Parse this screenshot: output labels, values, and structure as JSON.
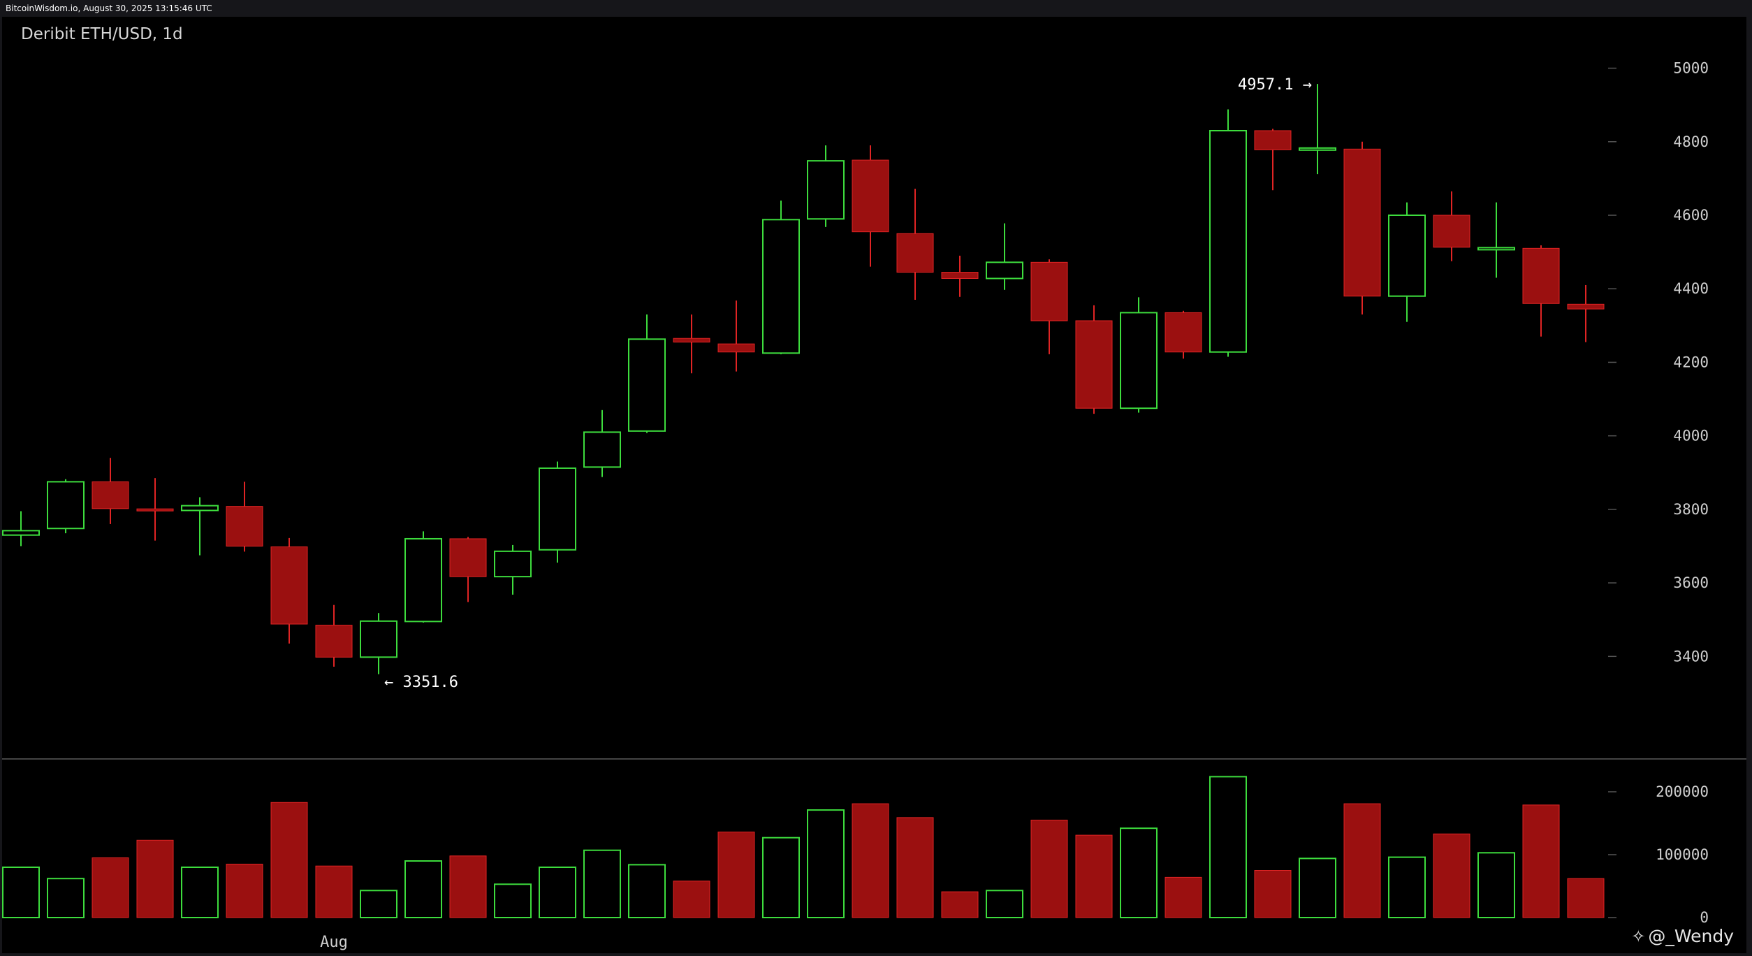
{
  "timestamp": "BitcoinWisdom.io, August 30, 2025 13:15:46 UTC",
  "title": "Deribit ETH/USD, 1d",
  "watermark": "@_Wendy",
  "colors": {
    "up": "#3ddc3d",
    "down": "#9b1010",
    "down_wick": "#e02424",
    "axis_text": "#cfcfcf",
    "background": "#000000"
  },
  "chart_data": [
    {
      "type": "candlestick",
      "title": "Deribit ETH/USD, 1d",
      "ylim": [
        3220,
        5060
      ],
      "y_ticks": [
        3400,
        3600,
        3800,
        4000,
        4200,
        4400,
        4600,
        4800,
        5000
      ],
      "x_tick_labels": [
        {
          "index": 7,
          "label": "Aug"
        }
      ],
      "annotations": [
        {
          "label": "4957.1 →",
          "index": 29,
          "value": 4957.1
        },
        {
          "label": "← 3351.6",
          "index": 8,
          "value": 3351.6
        }
      ],
      "candles": [
        {
          "o": 3730,
          "h": 3795,
          "l": 3700,
          "c": 3742
        },
        {
          "o": 3748,
          "h": 3882,
          "l": 3735,
          "c": 3875
        },
        {
          "o": 3875,
          "h": 3940,
          "l": 3760,
          "c": 3802
        },
        {
          "o": 3800,
          "h": 3885,
          "l": 3715,
          "c": 3797
        },
        {
          "o": 3797,
          "h": 3833,
          "l": 3675,
          "c": 3810
        },
        {
          "o": 3808,
          "h": 3875,
          "l": 3685,
          "c": 3700
        },
        {
          "o": 3698,
          "h": 3722,
          "l": 3435,
          "c": 3488
        },
        {
          "o": 3485,
          "h": 3540,
          "l": 3372,
          "c": 3398
        },
        {
          "o": 3398,
          "h": 3518,
          "l": 3351.6,
          "c": 3496
        },
        {
          "o": 3495,
          "h": 3740,
          "l": 3492,
          "c": 3720
        },
        {
          "o": 3720,
          "h": 3725,
          "l": 3548,
          "c": 3617
        },
        {
          "o": 3617,
          "h": 3703,
          "l": 3568,
          "c": 3686
        },
        {
          "o": 3690,
          "h": 3930,
          "l": 3655,
          "c": 3912
        },
        {
          "o": 3915,
          "h": 4070,
          "l": 3888,
          "c": 4010
        },
        {
          "o": 4013,
          "h": 4330,
          "l": 4008,
          "c": 4263
        },
        {
          "o": 4265,
          "h": 4330,
          "l": 4170,
          "c": 4255
        },
        {
          "o": 4250,
          "h": 4368,
          "l": 4175,
          "c": 4228
        },
        {
          "o": 4225,
          "h": 4640,
          "l": 4222,
          "c": 4588
        },
        {
          "o": 4590,
          "h": 4790,
          "l": 4568,
          "c": 4748
        },
        {
          "o": 4750,
          "h": 4790,
          "l": 4460,
          "c": 4555
        },
        {
          "o": 4550,
          "h": 4672,
          "l": 4370,
          "c": 4445
        },
        {
          "o": 4445,
          "h": 4490,
          "l": 4378,
          "c": 4428
        },
        {
          "o": 4428,
          "h": 4578,
          "l": 4397,
          "c": 4472
        },
        {
          "o": 4472,
          "h": 4480,
          "l": 4222,
          "c": 4313
        },
        {
          "o": 4313,
          "h": 4355,
          "l": 4060,
          "c": 4075
        },
        {
          "o": 4075,
          "h": 4377,
          "l": 4063,
          "c": 4335
        },
        {
          "o": 4335,
          "h": 4340,
          "l": 4210,
          "c": 4228
        },
        {
          "o": 4228,
          "h": 4888,
          "l": 4215,
          "c": 4830
        },
        {
          "o": 4830,
          "h": 4835,
          "l": 4668,
          "c": 4778
        },
        {
          "o": 4778,
          "h": 4957.1,
          "l": 4712,
          "c": 4782
        },
        {
          "o": 4780,
          "h": 4800,
          "l": 4330,
          "c": 4380
        },
        {
          "o": 4380,
          "h": 4635,
          "l": 4310,
          "c": 4600
        },
        {
          "o": 4600,
          "h": 4665,
          "l": 4475,
          "c": 4513
        },
        {
          "o": 4508,
          "h": 4635,
          "l": 4430,
          "c": 4510
        },
        {
          "o": 4510,
          "h": 4518,
          "l": 4270,
          "c": 4360
        },
        {
          "o": 4358,
          "h": 4410,
          "l": 4255,
          "c": 4345
        }
      ]
    },
    {
      "type": "bar",
      "title": "",
      "ylim": [
        0,
        230000
      ],
      "y_ticks": [
        0,
        100000,
        200000
      ],
      "values": [
        80000,
        62000,
        95000,
        123000,
        80000,
        85000,
        183000,
        82000,
        43000,
        90000,
        98000,
        53000,
        80000,
        107000,
        84000,
        58000,
        136000,
        127000,
        171000,
        181000,
        159000,
        41000,
        43000,
        155000,
        131000,
        142000,
        64000,
        224000,
        75000,
        94000,
        181000,
        96000,
        133000,
        103000,
        179000,
        62000
      ]
    }
  ]
}
